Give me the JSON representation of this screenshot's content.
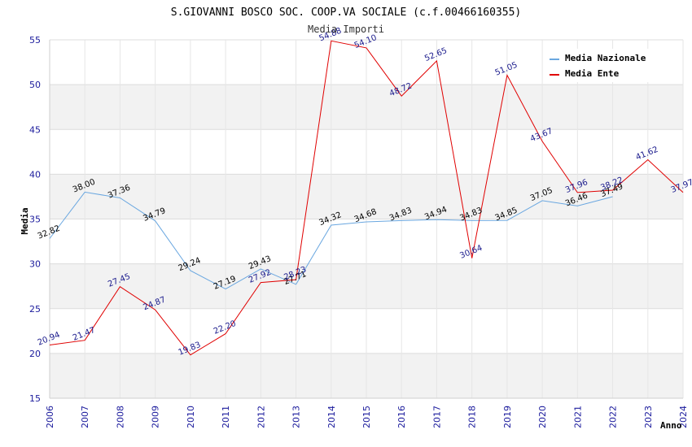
{
  "chart_data": {
    "type": "line",
    "title": "S.GIOVANNI BOSCO SOC. COOP.VA SOCIALE (c.f.00466160355)",
    "subtitle": "Media Importi",
    "xlabel": "Anno",
    "ylabel": "Media",
    "ylim": [
      15,
      55
    ],
    "yticks": [
      "15",
      "20",
      "25",
      "30",
      "35",
      "40",
      "45",
      "50",
      "55"
    ],
    "x": [
      "2006",
      "2007",
      "2008",
      "2009",
      "2010",
      "2011",
      "2012",
      "2013",
      "2014",
      "2015",
      "2016",
      "2017",
      "2018",
      "2019",
      "2020",
      "2021",
      "2022",
      "2023",
      "2024"
    ],
    "grid": true,
    "legend_position": "top-right",
    "series": [
      {
        "name": "Media Nazionale",
        "color": "#6aa7e0",
        "values": [
          32.82,
          38.0,
          37.36,
          34.79,
          29.24,
          27.19,
          29.43,
          27.71,
          34.32,
          34.68,
          34.83,
          34.94,
          34.83,
          34.85,
          37.05,
          36.46,
          37.49,
          null,
          null
        ],
        "labels": [
          "32.82",
          "38.00",
          "37.36",
          "34.79",
          "29.24",
          "27.19",
          "29.43",
          "27.71",
          "34.32",
          "34.68",
          "34.83",
          "34.94",
          "34.83",
          "34.85",
          "37.05",
          "36.46",
          "37.49",
          "",
          ""
        ]
      },
      {
        "name": "Media Ente",
        "color": "#e00000",
        "values": [
          20.94,
          21.47,
          27.45,
          24.87,
          19.83,
          22.2,
          27.92,
          28.23,
          54.88,
          54.1,
          48.72,
          52.65,
          30.64,
          51.05,
          43.67,
          37.96,
          38.22,
          41.62,
          37.97
        ],
        "labels": [
          "20.94",
          "21.47",
          "27.45",
          "24.87",
          "19.83",
          "22.20",
          "27.92",
          "28.23",
          "54.88",
          "54.10",
          "48.72",
          "52.65",
          "30.64",
          "51.05",
          "43.67",
          "37.96",
          "38.22",
          "41.62",
          "37.97"
        ]
      }
    ]
  }
}
